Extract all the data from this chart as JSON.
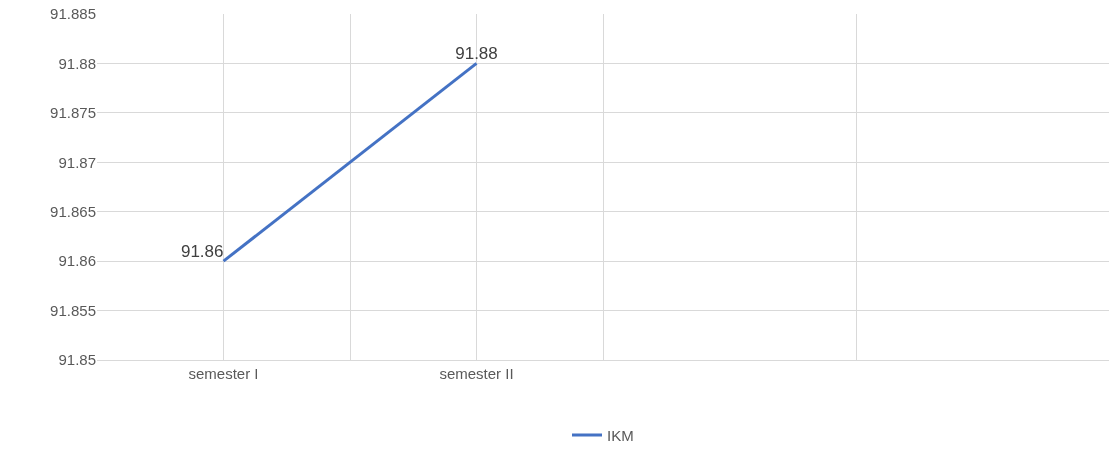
{
  "chart_data": {
    "type": "line",
    "categories": [
      "semester I",
      "semester II",
      null,
      null
    ],
    "series": [
      {
        "name": "IKM",
        "color": "#4472c4",
        "values": [
          91.86,
          91.88,
          null,
          null
        ]
      }
    ],
    "ylim": [
      91.85,
      91.885
    ],
    "yticks": [
      91.85,
      91.855,
      91.86,
      91.865,
      91.87,
      91.875,
      91.88,
      91.885
    ],
    "grid": true,
    "legend": "bottom",
    "data_labels": true,
    "marker": "none",
    "line_style": "solid"
  }
}
